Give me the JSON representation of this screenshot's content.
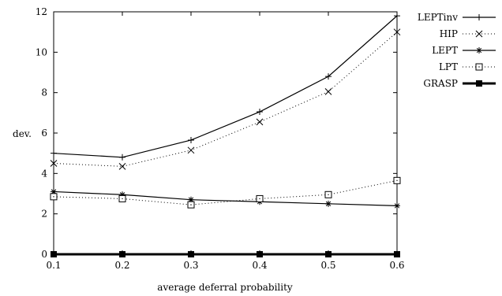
{
  "chart_data": {
    "type": "line",
    "title": "",
    "xlabel": "average deferral probability",
    "ylabel": "dev.",
    "xlim": [
      0.1,
      0.6
    ],
    "ylim": [
      0,
      12
    ],
    "x": [
      0.1,
      0.2,
      0.3,
      0.4,
      0.5,
      0.6
    ],
    "x_ticks": [
      "0.1",
      "0.2",
      "0.3",
      "0.4",
      "0.5",
      "0.6"
    ],
    "y_ticks": [
      "0",
      "2",
      "4",
      "6",
      "8",
      "10",
      "12"
    ],
    "grid": false,
    "legend_position": "outside-right",
    "series": [
      {
        "name": "LEPTinv",
        "marker": "plus",
        "line": "solid",
        "values": [
          5.0,
          4.8,
          5.65,
          7.05,
          8.8,
          11.8
        ]
      },
      {
        "name": "HIP",
        "marker": "cross",
        "line": "dotted",
        "values": [
          4.5,
          4.35,
          5.15,
          6.55,
          8.05,
          11.0
        ]
      },
      {
        "name": "LEPT",
        "marker": "star",
        "line": "solid",
        "values": [
          3.1,
          2.95,
          2.7,
          2.6,
          2.5,
          2.4
        ]
      },
      {
        "name": "LPT",
        "marker": "open-square",
        "line": "dotted",
        "values": [
          2.85,
          2.75,
          2.45,
          2.75,
          2.95,
          3.65
        ]
      },
      {
        "name": "GRASP",
        "marker": "filled-square",
        "line": "thick",
        "values": [
          0,
          0,
          0,
          0,
          0,
          0
        ]
      }
    ],
    "color": "#000000"
  }
}
